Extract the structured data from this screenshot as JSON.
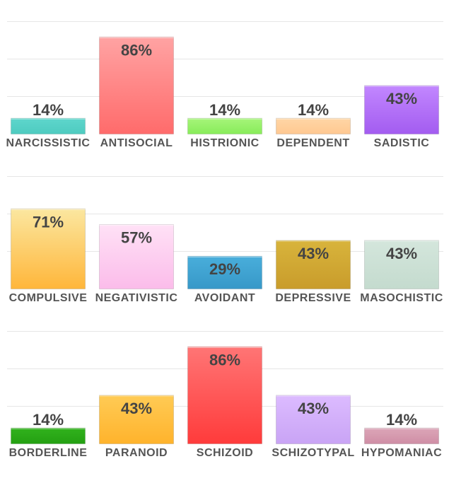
{
  "chart_data": [
    {
      "type": "bar",
      "categories": [
        "NARCISSISTIC",
        "ANTISOCIAL",
        "HISTRIONIC",
        "DEPENDENT",
        "SADISTIC"
      ],
      "values": [
        14,
        86,
        14,
        14,
        43
      ],
      "value_labels": [
        "14%",
        "86%",
        "14%",
        "14%",
        "43%"
      ],
      "colors": [
        [
          "#5ed6cc",
          "#4ecbc0"
        ],
        [
          "#ffa3a3",
          "#ff6b6b"
        ],
        [
          "#a6f57a",
          "#88ec5a"
        ],
        [
          "#ffd6a6",
          "#ffc891"
        ],
        [
          "#c287ff",
          "#a35cf0"
        ]
      ],
      "ylim": [
        0,
        100
      ],
      "grid": true
    },
    {
      "type": "bar",
      "categories": [
        "COMPULSIVE",
        "NEGATIVISTIC",
        "AVOIDANT",
        "DEPRESSIVE",
        "MASOCHISTIC"
      ],
      "values": [
        71,
        57,
        29,
        43,
        43
      ],
      "value_labels": [
        "71%",
        "57%",
        "29%",
        "43%",
        "43%"
      ],
      "colors": [
        [
          "#fbe7a0",
          "#ffb63a"
        ],
        [
          "#ffe1f6",
          "#fbbcea"
        ],
        [
          "#49aedb",
          "#3798c8"
        ],
        [
          "#d8b43c",
          "#c99c2b"
        ],
        [
          "#d4e6dc",
          "#c4dbce"
        ]
      ],
      "ylim": [
        0,
        100
      ],
      "grid": true
    },
    {
      "type": "bar",
      "categories": [
        "BORDERLINE",
        "PARANOID",
        "SCHIZOID",
        "SCHIZOTYPAL",
        "HYPOMANIAC"
      ],
      "values": [
        14,
        43,
        86,
        43,
        14
      ],
      "value_labels": [
        "14%",
        "43%",
        "86%",
        "43%",
        "14%"
      ],
      "colors": [
        [
          "#31b21d",
          "#24a012"
        ],
        [
          "#ffcb55",
          "#ffb32c"
        ],
        [
          "#ff7575",
          "#ff3b3b"
        ],
        [
          "#dcbbff",
          "#c9a4f5"
        ],
        [
          "#dca6b8",
          "#cf8ea5"
        ]
      ],
      "ylim": [
        0,
        100
      ],
      "grid": true
    }
  ]
}
